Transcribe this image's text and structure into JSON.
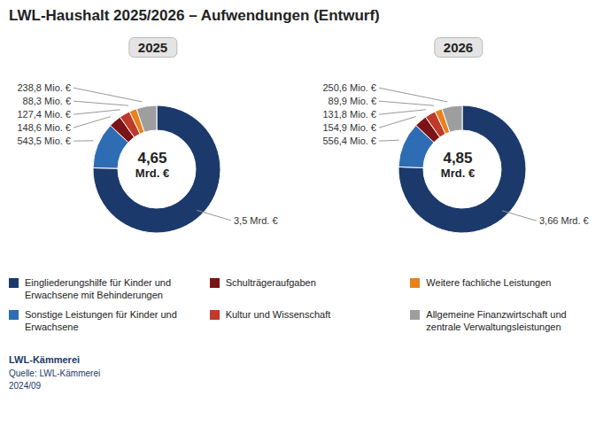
{
  "title": "LWL-Haushalt 2025/2026 – Aufwendungen (Entwurf)",
  "legend": "bottom",
  "annotations": [
    "LWL-Kämmerei",
    "Quelle: LWL-Kämmerei\n2024/09"
  ],
  "chart_data": [
    {
      "type": "pie",
      "title": "2025",
      "categories": [
        "Eingliederungshilfe für Kinder und\nErwachsene mit Behinderungen",
        "Sonstige Leistungen für Kinder und\nErwachsene",
        "Schulträgeraufgaben",
        "Kultur und Wissenschaft",
        "Weitere fachliche Leistungen",
        "Allgemeine Finanzwirtschaft und\nzentrale Verwaltungsleistungen"
      ],
      "values": [
        3500,
        543.5,
        148.6,
        127.4,
        88.3,
        238.8
      ],
      "value_labels": [
        "3,5 Mrd. €",
        "543,5 Mio. €",
        "148,6 Mio. €",
        "127,4 Mio. €",
        "88,3 Mio. €",
        "238,8 Mio. €"
      ],
      "colors": [
        "#1b3a6b",
        "#2e6db4",
        "#7b1416",
        "#c0392b",
        "#e8821c",
        "#9e9e9e"
      ],
      "data_labels": true,
      "annotations": [
        "4,65",
        "Mrd. €"
      ]
    },
    {
      "type": "pie",
      "title": "2026",
      "categories": [
        "Eingliederungshilfe für Kinder und\nErwachsene mit Behinderungen",
        "Sonstige Leistungen für Kinder und\nErwachsene",
        "Schulträgeraufgaben",
        "Kultur und Wissenschaft",
        "Weitere fachliche Leistungen",
        "Allgemeine Finanzwirtschaft und\nzentrale Verwaltungsleistungen"
      ],
      "values": [
        3660,
        556.4,
        154.9,
        131.8,
        89.9,
        250.6
      ],
      "value_labels": [
        "3,66 Mrd. €",
        "556,4 Mio. €",
        "154,9 Mio. €",
        "131,8 Mio. €",
        "89,9 Mio. €",
        "250,6 Mio. €"
      ],
      "colors": [
        "#1b3a6b",
        "#2e6db4",
        "#7b1416",
        "#c0392b",
        "#e8821c",
        "#9e9e9e"
      ],
      "data_labels": true,
      "annotations": [
        "4,85",
        "Mrd. €"
      ]
    }
  ]
}
